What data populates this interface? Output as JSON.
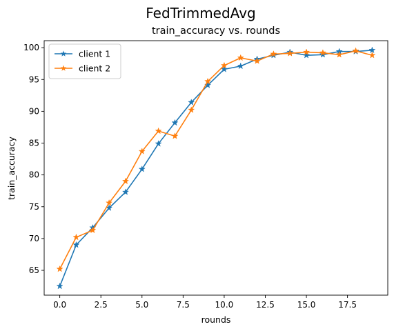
{
  "chart_data": {
    "type": "line",
    "suptitle": "FedTrimmedAvg",
    "title": "train_accuracy vs. rounds",
    "xlabel": "rounds",
    "ylabel": "train_accuracy",
    "xlim": [
      -0.95,
      19.95
    ],
    "ylim": [
      61.1,
      101.1
    ],
    "xticks": [
      "0.0",
      "2.5",
      "5.0",
      "7.5",
      "10.0",
      "12.5",
      "15.0",
      "17.5"
    ],
    "yticks": [
      "65",
      "70",
      "75",
      "80",
      "85",
      "90",
      "95",
      "100"
    ],
    "legend_position": "upper-left",
    "grid": false,
    "x": [
      0,
      1,
      2,
      3,
      4,
      5,
      6,
      7,
      8,
      9,
      10,
      11,
      12,
      13,
      14,
      15,
      16,
      17,
      18,
      19
    ],
    "series": [
      {
        "name": "client 1",
        "color": "#1f77b4",
        "marker": "star",
        "values": [
          62.5,
          69.0,
          71.7,
          74.8,
          77.3,
          80.9,
          84.9,
          88.2,
          91.4,
          94.1,
          96.6,
          97.1,
          98.2,
          98.8,
          99.3,
          98.8,
          98.9,
          99.4,
          99.4,
          99.6
        ]
      },
      {
        "name": "client 2",
        "color": "#ff7f0e",
        "marker": "star",
        "values": [
          65.2,
          70.2,
          71.3,
          75.6,
          79.0,
          83.7,
          86.9,
          86.1,
          90.2,
          94.7,
          97.2,
          98.4,
          97.9,
          99.0,
          99.1,
          99.3,
          99.2,
          98.9,
          99.5,
          98.8
        ]
      }
    ]
  }
}
